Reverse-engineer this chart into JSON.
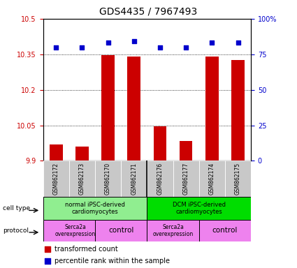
{
  "title": "GDS4435 / 7967493",
  "samples": [
    "GSM862172",
    "GSM862173",
    "GSM862170",
    "GSM862171",
    "GSM862176",
    "GSM862177",
    "GSM862174",
    "GSM862175"
  ],
  "red_values": [
    9.97,
    9.96,
    10.345,
    10.34,
    10.047,
    9.985,
    10.34,
    10.325
  ],
  "blue_values_pct": [
    80,
    80,
    83,
    84,
    80,
    80,
    83,
    83
  ],
  "ylim_left": [
    9.9,
    10.5
  ],
  "ylim_right": [
    0,
    100
  ],
  "yticks_left": [
    9.9,
    10.05,
    10.2,
    10.35,
    10.5
  ],
  "yticks_left_labels": [
    "9.9",
    "10.05",
    "10.2",
    "10.35",
    "10.5"
  ],
  "yticks_right": [
    0,
    25,
    50,
    75,
    100
  ],
  "yticks_right_labels": [
    "0",
    "25",
    "50",
    "75",
    "100%"
  ],
  "bar_color": "#cc0000",
  "dot_color": "#0000cc",
  "bg_color": "#ffffff",
  "cell_type_groups": [
    {
      "label": "normal iPSC-derived\ncardiomyocytes",
      "color": "#90ee90"
    },
    {
      "label": "DCM iPSC-derived\ncardiomyocytes",
      "color": "#00dd00"
    }
  ],
  "protocol_groups": [
    {
      "label": "Serca2a\noverexpression",
      "color": "#ee82ee"
    },
    {
      "label": "control",
      "color": "#ee82ee"
    },
    {
      "label": "Serca2a\noverexpression",
      "color": "#ee82ee"
    },
    {
      "label": "control",
      "color": "#ee82ee"
    }
  ],
  "legend_red_label": "transformed count",
  "legend_blue_label": "percentile rank within the sample",
  "cell_type_label": "cell type",
  "protocol_label": "protocol",
  "tick_color_left": "#cc0000",
  "tick_color_right": "#0000cc",
  "sample_bg": "#c8c8c8"
}
